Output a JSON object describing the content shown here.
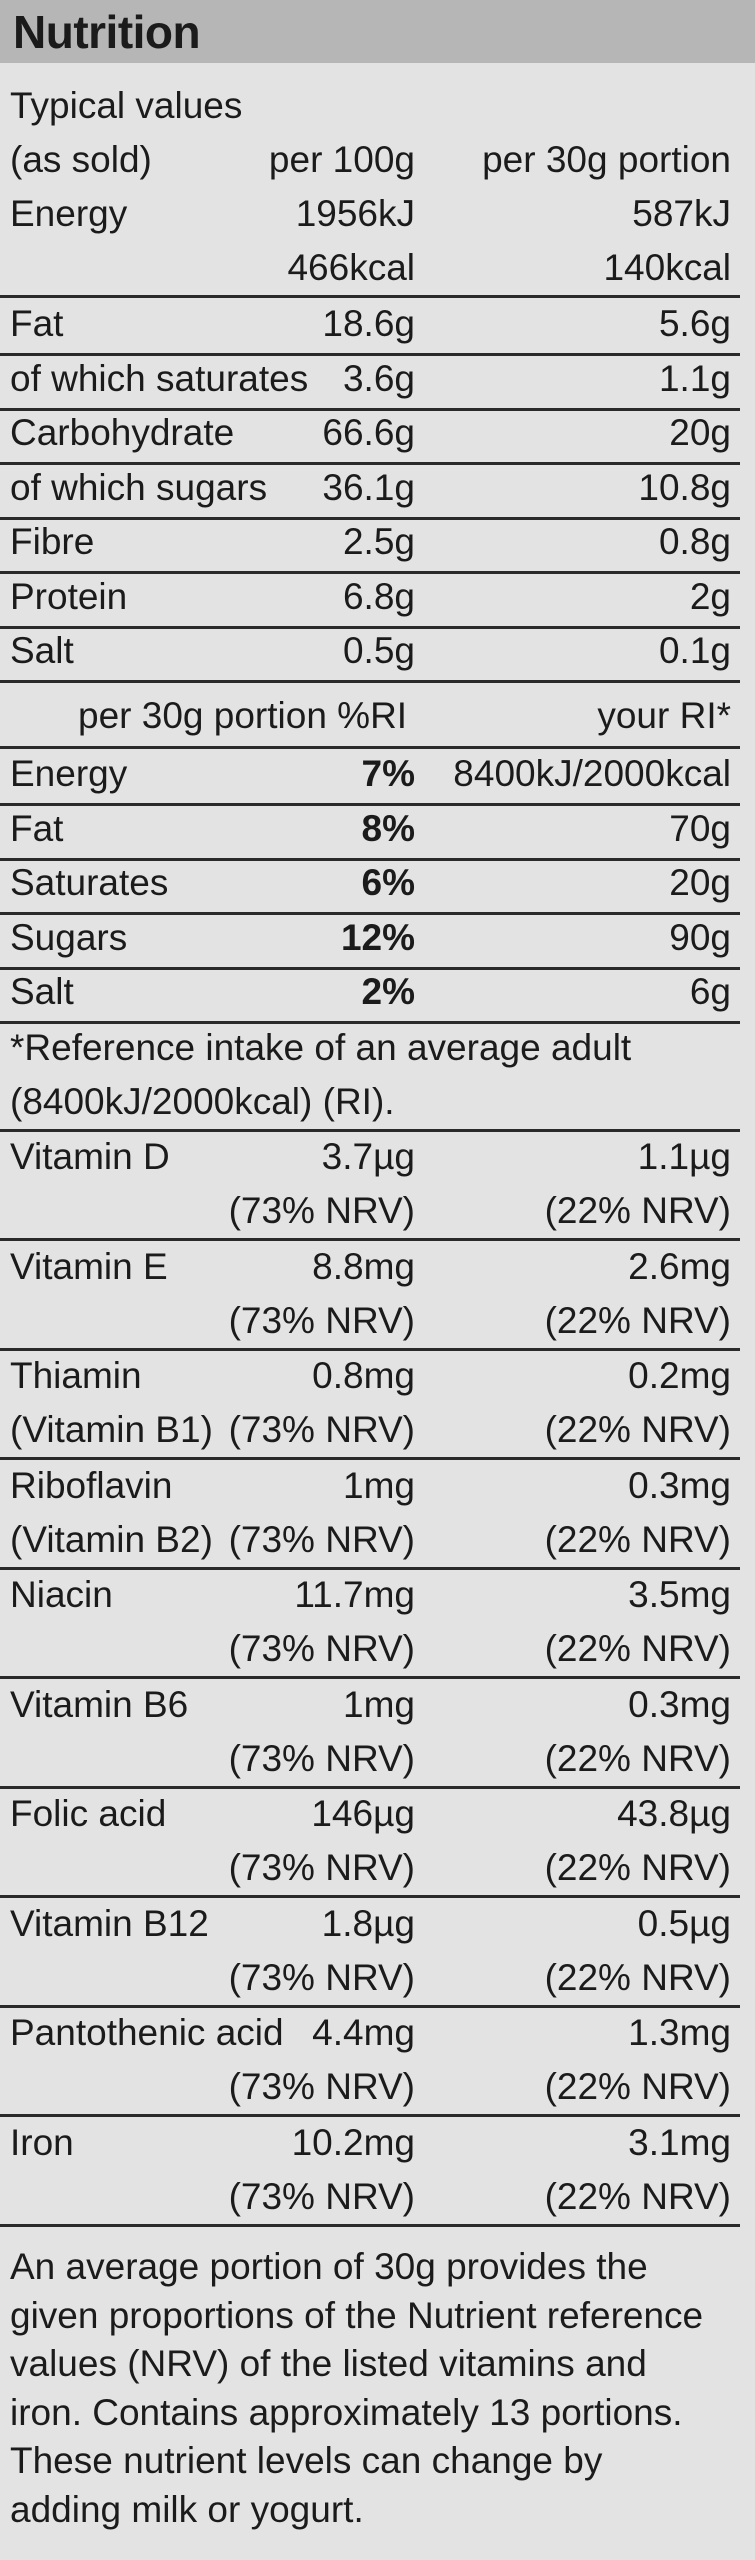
{
  "title": "Nutrition",
  "header": {
    "typical": "Typical values",
    "as_sold": "(as sold)",
    "per100": "per 100g",
    "per30": "per 30g portion"
  },
  "energy": {
    "label": "Energy",
    "kj100": "1956kJ",
    "kj30": "587kJ",
    "kcal100": "466kcal",
    "kcal30": "140kcal"
  },
  "nutrients": [
    {
      "label": "Fat",
      "per100": "18.6g",
      "per30": "5.6g"
    },
    {
      "label": "of which saturates",
      "per100": "3.6g",
      "per30": "1.1g"
    },
    {
      "label": "Carbohydrate",
      "per100": "66.6g",
      "per30": "20g"
    },
    {
      "label": "of which sugars",
      "per100": "36.1g",
      "per30": "10.8g"
    },
    {
      "label": "Fibre",
      "per100": "2.5g",
      "per30": "0.8g"
    },
    {
      "label": "Protein",
      "per100": "6.8g",
      "per30": "2g"
    },
    {
      "label": "Salt",
      "per100": "0.5g",
      "per30": "0.1g"
    }
  ],
  "ri_header": {
    "left": "per 30g portion %RI",
    "right": "your RI*"
  },
  "ri_rows": [
    {
      "label": "Energy",
      "pct": "7%",
      "ri": "8400kJ/2000kcal"
    },
    {
      "label": "Fat",
      "pct": "8%",
      "ri": "70g"
    },
    {
      "label": "Saturates",
      "pct": "6%",
      "ri": "20g"
    },
    {
      "label": "Sugars",
      "pct": "12%",
      "ri": "90g"
    },
    {
      "label": "Salt",
      "pct": "2%",
      "ri": "6g"
    }
  ],
  "ri_note": {
    "line1": "*Reference intake of an average adult",
    "line2": "(8400kJ/2000kcal) (RI)."
  },
  "vitamins": [
    {
      "label": "Vitamin D",
      "label2": "",
      "per100": "3.7µg",
      "per30": "1.1µg",
      "nrv100": "(73% NRV)",
      "nrv30": "(22% NRV)"
    },
    {
      "label": "Vitamin E",
      "label2": "",
      "per100": "8.8mg",
      "per30": "2.6mg",
      "nrv100": "(73% NRV)",
      "nrv30": "(22% NRV)"
    },
    {
      "label": "Thiamin",
      "label2": "(Vitamin B1)",
      "per100": "0.8mg",
      "per30": "0.2mg",
      "nrv100": "(73% NRV)",
      "nrv30": "(22% NRV)"
    },
    {
      "label": "Riboflavin",
      "label2": "(Vitamin B2)",
      "per100": "1mg",
      "per30": "0.3mg",
      "nrv100": "(73% NRV)",
      "nrv30": "(22% NRV)"
    },
    {
      "label": "Niacin",
      "label2": "",
      "per100": "11.7mg",
      "per30": "3.5mg",
      "nrv100": "(73% NRV)",
      "nrv30": "(22% NRV)"
    },
    {
      "label": "Vitamin B6",
      "label2": "",
      "per100": "1mg",
      "per30": "0.3mg",
      "nrv100": "(73% NRV)",
      "nrv30": "(22% NRV)"
    },
    {
      "label": "Folic acid",
      "label2": "",
      "per100": "146µg",
      "per30": "43.8µg",
      "nrv100": "(73% NRV)",
      "nrv30": "(22% NRV)"
    },
    {
      "label": "Vitamin B12",
      "label2": "",
      "per100": "1.8µg",
      "per30": "0.5µg",
      "nrv100": "(73% NRV)",
      "nrv30": "(22% NRV)"
    },
    {
      "label": "Pantothenic acid",
      "label2": "",
      "per100": "4.4mg",
      "per30": "1.3mg",
      "nrv100": "(73% NRV)",
      "nrv30": "(22% NRV)"
    },
    {
      "label": "Iron",
      "label2": "",
      "per100": "10.2mg",
      "per30": "3.1mg",
      "nrv100": "(73% NRV)",
      "nrv30": "(22% NRV)"
    }
  ],
  "footer": {
    "lines": [
      "An average portion of 30g provides the",
      "given proportions of the Nutrient reference",
      "values (NRV) of the listed vitamins and",
      "iron. Contains approximately 13 portions.",
      "These nutrient levels can change by",
      "adding milk or yogurt."
    ]
  }
}
